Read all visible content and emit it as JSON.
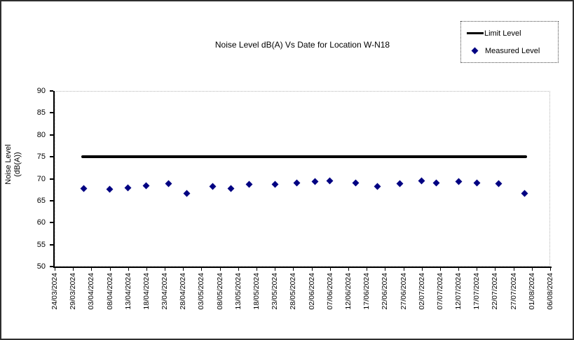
{
  "chart_data": {
    "type": "scatter",
    "title": "Noise Level dB(A) Vs Date for Location W-N18",
    "ylabel": "Noise Level (dB(A))",
    "ylabel_lines": [
      "Noise Level",
      "(dB(A))"
    ],
    "ylim": [
      50,
      90
    ],
    "y_ticks": [
      50,
      55,
      60,
      65,
      70,
      75,
      80,
      85,
      90
    ],
    "x_tick_labels": [
      "24/03/2024",
      "29/03/2024",
      "03/04/2024",
      "08/04/2024",
      "13/04/2024",
      "18/04/2024",
      "23/04/2024",
      "28/04/2024",
      "03/05/2024",
      "08/05/2024",
      "13/05/2024",
      "18/05/2024",
      "23/05/2024",
      "28/05/2024",
      "02/06/2024",
      "07/06/2024",
      "12/06/2024",
      "17/06/2024",
      "22/06/2024",
      "27/06/2024",
      "02/07/2024",
      "07/07/2024",
      "12/07/2024",
      "17/07/2024",
      "22/07/2024",
      "27/07/2024",
      "01/08/2024",
      "06/08/2024"
    ],
    "x_tick_interval_days": 5,
    "grid": false,
    "legend_position": "top-right",
    "series": [
      {
        "name": "Limit Level",
        "type": "line",
        "color": "#000000",
        "value": 75
      },
      {
        "name": "Measured Level",
        "type": "scatter",
        "marker": "diamond",
        "color": "#000082",
        "points": [
          {
            "x": "01/04/2024",
            "y": 67.7
          },
          {
            "x": "08/04/2024",
            "y": 67.6
          },
          {
            "x": "13/04/2024",
            "y": 67.9
          },
          {
            "x": "18/04/2024",
            "y": 68.4
          },
          {
            "x": "24/04/2024",
            "y": 68.9
          },
          {
            "x": "29/04/2024",
            "y": 66.7
          },
          {
            "x": "06/05/2024",
            "y": 68.2
          },
          {
            "x": "11/05/2024",
            "y": 67.8
          },
          {
            "x": "16/05/2024",
            "y": 68.8
          },
          {
            "x": "23/05/2024",
            "y": 68.7
          },
          {
            "x": "29/05/2024",
            "y": 69.0
          },
          {
            "x": "03/06/2024",
            "y": 69.3
          },
          {
            "x": "07/06/2024",
            "y": 69.5
          },
          {
            "x": "14/06/2024",
            "y": 69.1
          },
          {
            "x": "20/06/2024",
            "y": 68.3
          },
          {
            "x": "26/06/2024",
            "y": 68.9
          },
          {
            "x": "02/07/2024",
            "y": 69.6
          },
          {
            "x": "06/07/2024",
            "y": 69.0
          },
          {
            "x": "12/07/2024",
            "y": 69.4
          },
          {
            "x": "17/07/2024",
            "y": 69.0
          },
          {
            "x": "23/07/2024",
            "y": 68.9
          },
          {
            "x": "30/07/2024",
            "y": 66.6
          }
        ]
      }
    ]
  }
}
